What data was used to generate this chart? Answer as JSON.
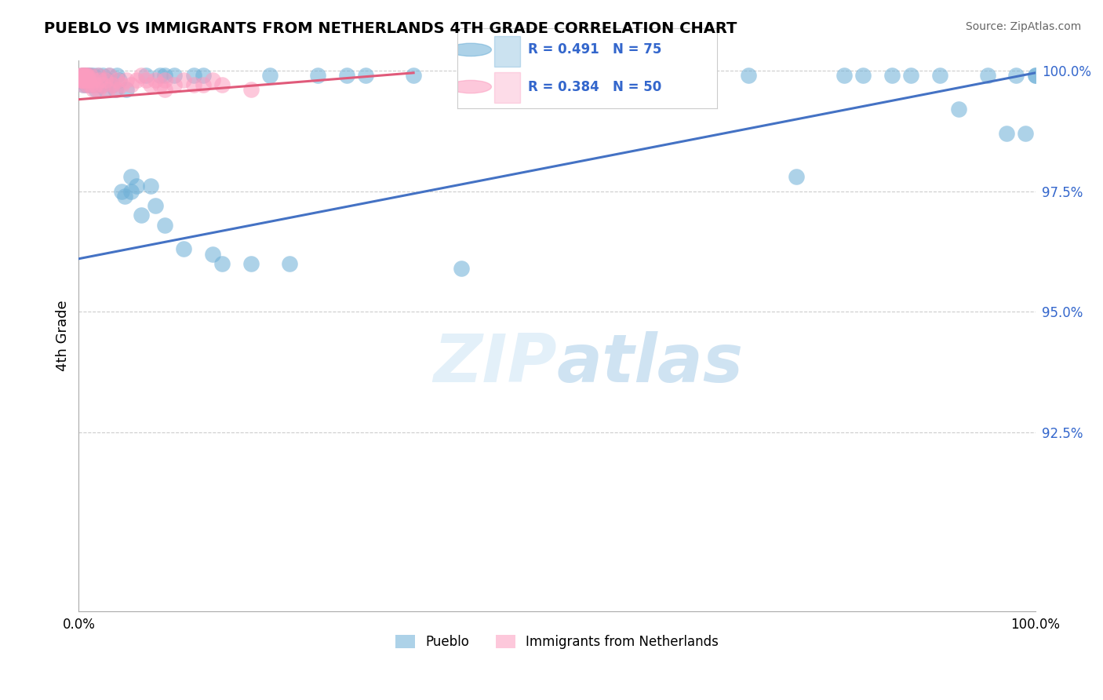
{
  "title": "PUEBLO VS IMMIGRANTS FROM NETHERLANDS 4TH GRADE CORRELATION CHART",
  "source": "Source: ZipAtlas.com",
  "ylabel": "4th Grade",
  "legend_blue_r": "R = 0.491",
  "legend_blue_n": "N = 75",
  "legend_pink_r": "R = 0.384",
  "legend_pink_n": "N = 50",
  "legend_blue_label": "Pueblo",
  "legend_pink_label": "Immigrants from Netherlands",
  "watermark_zip": "ZIP",
  "watermark_atlas": "atlas",
  "blue_color": "#6baed6",
  "pink_color": "#fc9cbf",
  "trend_blue": "#4472c4",
  "trend_pink": "#e05a7a",
  "blue_scatter": [
    [
      0.005,
      0.999
    ],
    [
      0.005,
      0.999
    ],
    [
      0.005,
      0.998
    ],
    [
      0.005,
      0.997
    ],
    [
      0.007,
      0.999
    ],
    [
      0.007,
      0.998
    ],
    [
      0.008,
      0.998
    ],
    [
      0.008,
      0.997
    ],
    [
      0.009,
      0.999
    ],
    [
      0.01,
      0.999
    ],
    [
      0.01,
      0.998
    ],
    [
      0.012,
      0.999
    ],
    [
      0.012,
      0.997
    ],
    [
      0.015,
      0.999
    ],
    [
      0.015,
      0.998
    ],
    [
      0.016,
      0.997
    ],
    [
      0.018,
      0.996
    ],
    [
      0.02,
      0.999
    ],
    [
      0.02,
      0.998
    ],
    [
      0.022,
      0.997
    ],
    [
      0.025,
      0.999
    ],
    [
      0.025,
      0.997
    ],
    [
      0.028,
      0.996
    ],
    [
      0.03,
      0.998
    ],
    [
      0.032,
      0.999
    ],
    [
      0.035,
      0.997
    ],
    [
      0.038,
      0.996
    ],
    [
      0.04,
      0.999
    ],
    [
      0.042,
      0.998
    ],
    [
      0.045,
      0.975
    ],
    [
      0.048,
      0.974
    ],
    [
      0.05,
      0.996
    ],
    [
      0.055,
      0.978
    ],
    [
      0.055,
      0.975
    ],
    [
      0.06,
      0.976
    ],
    [
      0.065,
      0.97
    ],
    [
      0.07,
      0.999
    ],
    [
      0.075,
      0.976
    ],
    [
      0.08,
      0.972
    ],
    [
      0.085,
      0.999
    ],
    [
      0.09,
      0.999
    ],
    [
      0.09,
      0.968
    ],
    [
      0.1,
      0.999
    ],
    [
      0.11,
      0.963
    ],
    [
      0.12,
      0.999
    ],
    [
      0.13,
      0.999
    ],
    [
      0.14,
      0.962
    ],
    [
      0.15,
      0.96
    ],
    [
      0.18,
      0.96
    ],
    [
      0.2,
      0.999
    ],
    [
      0.22,
      0.96
    ],
    [
      0.25,
      0.999
    ],
    [
      0.28,
      0.999
    ],
    [
      0.3,
      0.999
    ],
    [
      0.35,
      0.999
    ],
    [
      0.4,
      0.959
    ],
    [
      0.45,
      0.999
    ],
    [
      0.5,
      0.999
    ],
    [
      0.55,
      0.999
    ],
    [
      0.6,
      0.999
    ],
    [
      0.65,
      0.999
    ],
    [
      0.7,
      0.999
    ],
    [
      0.75,
      0.978
    ],
    [
      0.8,
      0.999
    ],
    [
      0.82,
      0.999
    ],
    [
      0.85,
      0.999
    ],
    [
      0.87,
      0.999
    ],
    [
      0.9,
      0.999
    ],
    [
      0.92,
      0.992
    ],
    [
      0.95,
      0.999
    ],
    [
      0.97,
      0.987
    ],
    [
      0.98,
      0.999
    ],
    [
      0.99,
      0.987
    ],
    [
      1.0,
      0.999
    ],
    [
      1.0,
      0.999
    ]
  ],
  "pink_scatter": [
    [
      0.002,
      0.999
    ],
    [
      0.002,
      0.998
    ],
    [
      0.003,
      0.999
    ],
    [
      0.003,
      0.998
    ],
    [
      0.004,
      0.999
    ],
    [
      0.004,
      0.998
    ],
    [
      0.005,
      0.999
    ],
    [
      0.005,
      0.997
    ],
    [
      0.006,
      0.999
    ],
    [
      0.006,
      0.998
    ],
    [
      0.007,
      0.999
    ],
    [
      0.007,
      0.998
    ],
    [
      0.008,
      0.999
    ],
    [
      0.008,
      0.998
    ],
    [
      0.009,
      0.999
    ],
    [
      0.009,
      0.997
    ],
    [
      0.01,
      0.998
    ],
    [
      0.012,
      0.999
    ],
    [
      0.012,
      0.997
    ],
    [
      0.015,
      0.998
    ],
    [
      0.015,
      0.996
    ],
    [
      0.018,
      0.997
    ],
    [
      0.02,
      0.999
    ],
    [
      0.02,
      0.996
    ],
    [
      0.022,
      0.998
    ],
    [
      0.025,
      0.997
    ],
    [
      0.028,
      0.998
    ],
    [
      0.03,
      0.996
    ],
    [
      0.032,
      0.999
    ],
    [
      0.035,
      0.997
    ],
    [
      0.04,
      0.998
    ],
    [
      0.04,
      0.996
    ],
    [
      0.045,
      0.997
    ],
    [
      0.05,
      0.998
    ],
    [
      0.055,
      0.997
    ],
    [
      0.06,
      0.998
    ],
    [
      0.065,
      0.999
    ],
    [
      0.07,
      0.998
    ],
    [
      0.075,
      0.997
    ],
    [
      0.08,
      0.998
    ],
    [
      0.085,
      0.997
    ],
    [
      0.09,
      0.998
    ],
    [
      0.09,
      0.996
    ],
    [
      0.1,
      0.997
    ],
    [
      0.11,
      0.998
    ],
    [
      0.12,
      0.997
    ],
    [
      0.13,
      0.997
    ],
    [
      0.14,
      0.998
    ],
    [
      0.15,
      0.997
    ],
    [
      0.18,
      0.996
    ]
  ],
  "blue_trend_x": [
    0.0,
    1.0
  ],
  "blue_trend_y_start": 0.961,
  "blue_trend_y_end": 0.9995,
  "pink_trend_x": [
    0.0,
    0.35
  ],
  "pink_trend_y_start": 0.994,
  "pink_trend_y_end": 0.9995,
  "xmin": 0.0,
  "xmax": 1.0,
  "ymin": 0.888,
  "ymax": 1.002,
  "ytick_vals": [
    0.925,
    0.95,
    0.975,
    1.0
  ],
  "ytick_labels": [
    "92.5%",
    "95.0%",
    "97.5%",
    "100.0%"
  ]
}
